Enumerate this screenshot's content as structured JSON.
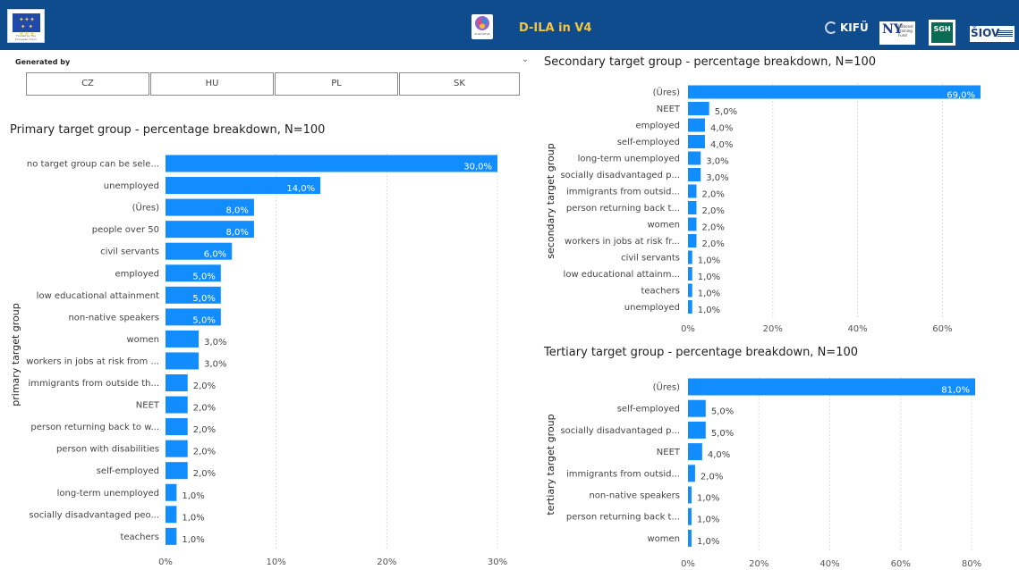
{
  "header": {
    "eu_caption": "Funded by the European Union",
    "dila_logo_text": "D-ILA IN V4",
    "app_title": "D-ILA in V4",
    "partner_kifu": "KIFÜ",
    "partner_ny_mark": "NY",
    "partner_ny_text": "National Training Fund",
    "partner_sgh": "SGH",
    "partner_siov": "ŠIOV"
  },
  "slicer": {
    "title": "Generated by",
    "options": [
      "CZ",
      "HU",
      "PL",
      "SK"
    ]
  },
  "chart_data": [
    {
      "id": "primary",
      "type": "bar",
      "orientation": "horizontal",
      "title": "Primary target group - percentage breakdown, N=100",
      "ylabel": "primary target group",
      "xlim": [
        0,
        30
      ],
      "xticks": [
        "0%",
        "10%",
        "20%",
        "30%"
      ],
      "xtick_values": [
        0,
        10,
        20,
        30
      ],
      "color": "#118dff",
      "categories": [
        "no target group can be sele...",
        "unemployed",
        "(Üres)",
        "people over 50",
        "civil servants",
        "employed",
        "low educational attainment",
        "non-native speakers",
        "women",
        "workers in jobs at risk from ...",
        "immigrants from outside th...",
        "NEET",
        "person returning back to w...",
        "person with disabilities",
        "self-employed",
        "long-term unemployed",
        "socially disadvantaged peo...",
        "teachers"
      ],
      "values": [
        30,
        14,
        8,
        8,
        6,
        5,
        5,
        5,
        3,
        3,
        2,
        2,
        2,
        2,
        2,
        1,
        1,
        1
      ],
      "labels": [
        "30,0%",
        "14,0%",
        "8,0%",
        "8,0%",
        "6,0%",
        "5,0%",
        "5,0%",
        "5,0%",
        "3,0%",
        "3,0%",
        "2,0%",
        "2,0%",
        "2,0%",
        "2,0%",
        "2,0%",
        "1,0%",
        "1,0%",
        "1,0%"
      ]
    },
    {
      "id": "secondary",
      "type": "bar",
      "orientation": "horizontal",
      "title": "Secondary target group - percentage breakdown, N=100",
      "ylabel": "secondary target group",
      "xlim": [
        0,
        69
      ],
      "xticks": [
        "0%",
        "20%",
        "40%",
        "60%"
      ],
      "xtick_values": [
        0,
        20,
        40,
        60
      ],
      "color": "#118dff",
      "categories": [
        "(Üres)",
        "NEET",
        "employed",
        "self-employed",
        "long-term unemployed",
        "socially disadvantaged p...",
        "immigrants from outsid...",
        "person returning back t...",
        "women",
        "workers in jobs at risk fr...",
        "civil servants",
        "low educational attainm...",
        "teachers",
        "unemployed"
      ],
      "values": [
        69,
        5,
        4,
        4,
        3,
        3,
        2,
        2,
        2,
        2,
        1,
        1,
        1,
        1
      ],
      "labels": [
        "69,0%",
        "5,0%",
        "4,0%",
        "4,0%",
        "3,0%",
        "3,0%",
        "2,0%",
        "2,0%",
        "2,0%",
        "2,0%",
        "1,0%",
        "1,0%",
        "1,0%",
        "1,0%"
      ]
    },
    {
      "id": "tertiary",
      "type": "bar",
      "orientation": "horizontal",
      "title": "Tertiary target group - percentage breakdown, N=100",
      "ylabel": "tertiary target group",
      "xlim": [
        0,
        81
      ],
      "xticks": [
        "0%",
        "20%",
        "40%",
        "60%",
        "80%"
      ],
      "xtick_values": [
        0,
        20,
        40,
        60,
        80
      ],
      "color": "#118dff",
      "categories": [
        "(Üres)",
        "self-employed",
        "socially disadvantaged p...",
        "NEET",
        "immigrants from outsid...",
        "non-native speakers",
        "person returning back t...",
        "women"
      ],
      "values": [
        81,
        5,
        5,
        4,
        2,
        1,
        1,
        1
      ],
      "labels": [
        "81,0%",
        "5,0%",
        "5,0%",
        "4,0%",
        "2,0%",
        "1,0%",
        "1,0%",
        "1,0%"
      ]
    }
  ]
}
